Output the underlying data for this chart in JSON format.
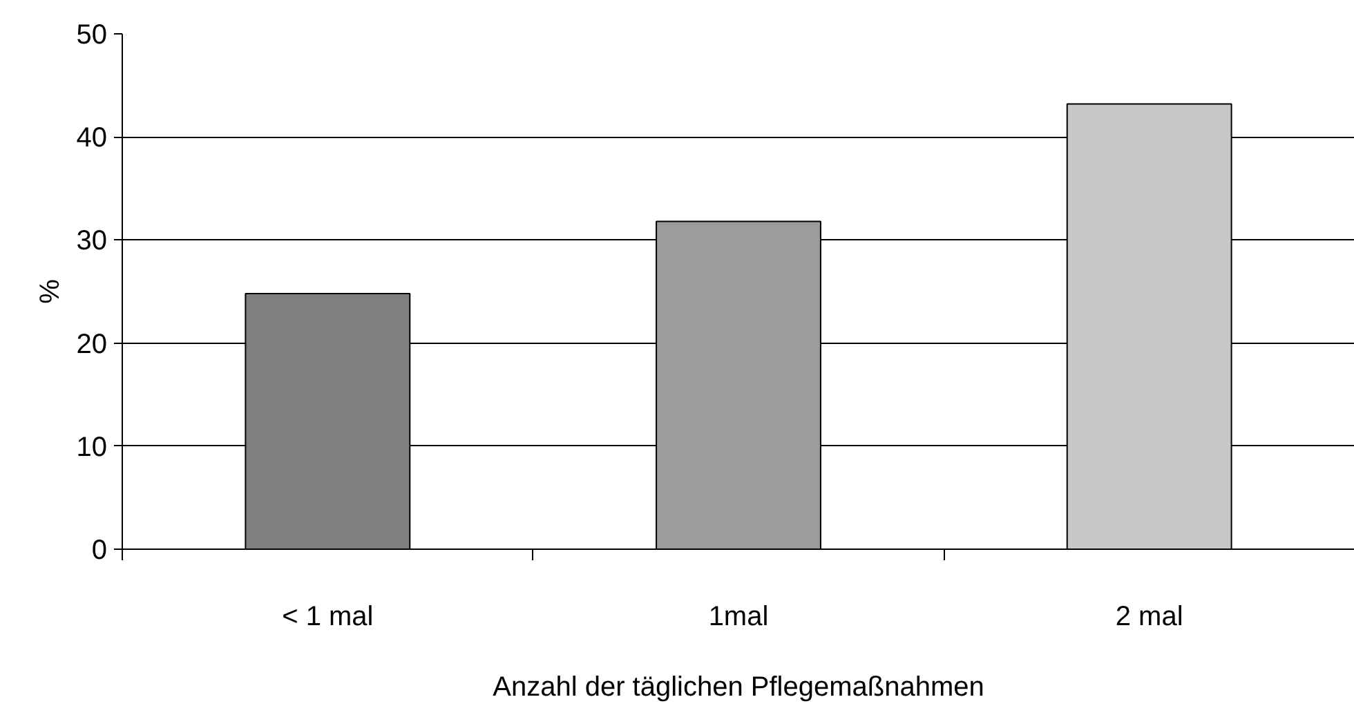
{
  "chart_data": {
    "type": "bar",
    "categories": [
      "< 1 mal",
      "1mal",
      "2 mal"
    ],
    "values": [
      24.8,
      31.8,
      43.2
    ],
    "colors": [
      "#808080",
      "#9c9c9c",
      "#c8c8c8"
    ],
    "xlabel": "Anzahl der täglichen Pflegemaßnahmen",
    "ylabel": "%",
    "ylim": [
      0,
      50
    ],
    "yticks": [
      0,
      10,
      20,
      30,
      40,
      50
    ],
    "grid": "y"
  }
}
